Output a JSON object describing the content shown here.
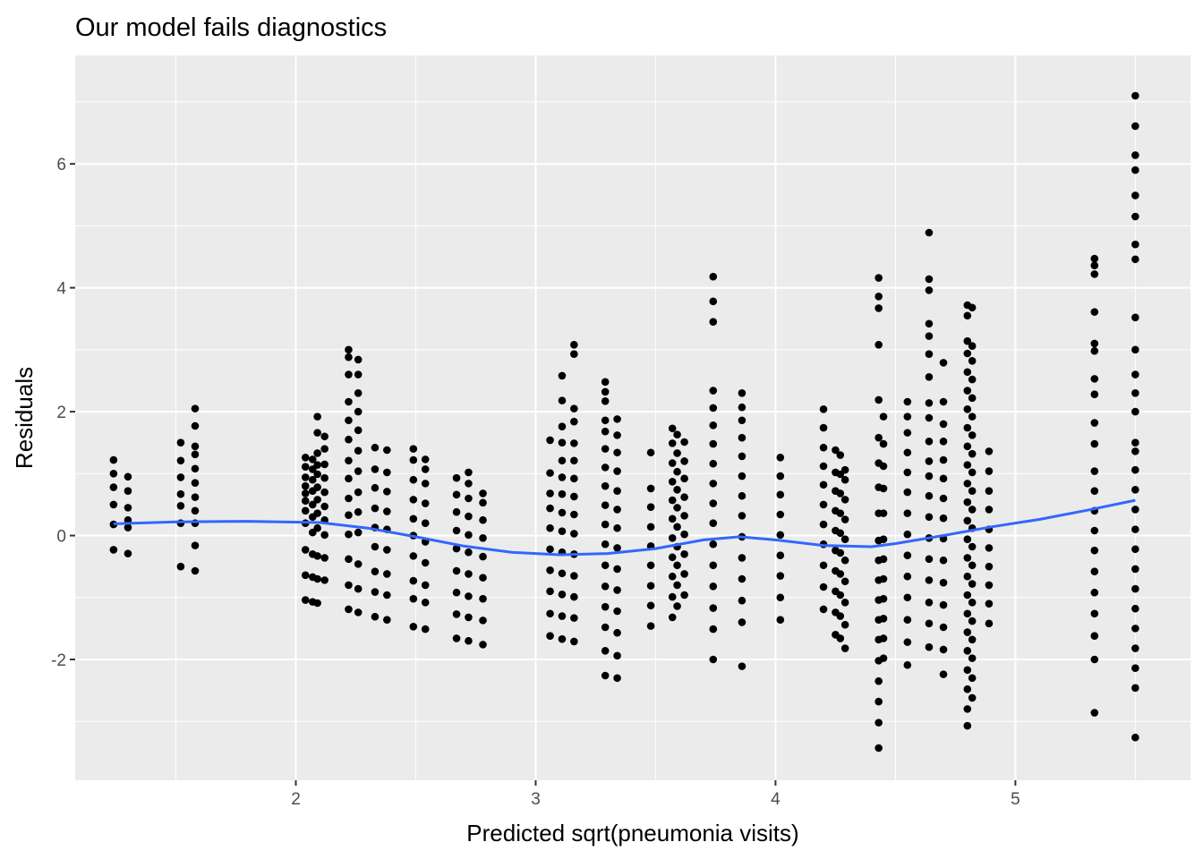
{
  "chart_data": {
    "type": "scatter",
    "title": "Our model fails diagnostics",
    "xlabel": "Predicted sqrt(pneumonia visits)",
    "ylabel": "Residuals",
    "xlim": [
      1.08,
      5.73
    ],
    "ylim": [
      -3.95,
      7.75
    ],
    "xticks": [
      2,
      3,
      4,
      5
    ],
    "yticks": [
      -2,
      0,
      2,
      4,
      6
    ],
    "grid": true,
    "panel_background": "#ebebeb",
    "point_color": "#000000",
    "smooth_color": "#3366ff",
    "columns": [
      {
        "x": 1.24,
        "y": [
          -0.23,
          0.18,
          0.5,
          0.78,
          1.0,
          1.22
        ]
      },
      {
        "x": 1.3,
        "y": [
          -0.29,
          0.13,
          0.25,
          0.45,
          0.72,
          0.95
        ]
      },
      {
        "x": 1.52,
        "y": [
          -0.5,
          0.2,
          0.48,
          0.67,
          0.94,
          1.21,
          1.5
        ]
      },
      {
        "x": 1.58,
        "y": [
          -0.57,
          -0.16,
          0.2,
          0.4,
          0.62,
          0.85,
          1.08,
          1.31,
          1.44,
          1.77,
          2.05
        ]
      },
      {
        "x": 2.04,
        "y": [
          -1.04,
          -0.64,
          -0.23,
          0.2,
          0.4,
          0.56,
          0.68,
          0.8,
          0.94,
          1.11,
          1.26
        ]
      },
      {
        "x": 2.07,
        "y": [
          -1.07,
          -0.67,
          -0.3,
          0.05,
          0.3,
          0.5,
          0.72,
          0.9,
          1.07,
          1.23
        ]
      },
      {
        "x": 2.09,
        "y": [
          -1.09,
          -0.7,
          -0.33,
          0.12,
          0.36,
          0.58,
          0.78,
          0.99,
          1.14,
          1.33,
          1.66,
          1.92
        ]
      },
      {
        "x": 2.12,
        "y": [
          -0.72,
          -0.36,
          0.01,
          0.25,
          0.47,
          0.7,
          0.93,
          1.15,
          1.4,
          1.6
        ]
      },
      {
        "x": 2.22,
        "y": [
          -1.19,
          -0.8,
          -0.38,
          0.02,
          0.33,
          0.6,
          0.92,
          1.21,
          1.55,
          1.86,
          2.16,
          2.6,
          2.88,
          3.0
        ]
      },
      {
        "x": 2.26,
        "y": [
          -1.24,
          -0.86,
          -0.46,
          0.05,
          0.38,
          0.7,
          1.04,
          1.37,
          1.7,
          2.0,
          2.3,
          2.6,
          2.84
        ]
      },
      {
        "x": 2.33,
        "y": [
          -1.31,
          -0.91,
          -0.58,
          -0.18,
          0.13,
          0.44,
          0.77,
          1.07,
          1.42
        ]
      },
      {
        "x": 2.38,
        "y": [
          -1.36,
          -0.96,
          -0.62,
          -0.23,
          0.1,
          0.39,
          0.71,
          1.02,
          1.38
        ]
      },
      {
        "x": 2.49,
        "y": [
          -1.47,
          -1.02,
          -0.73,
          -0.33,
          0.0,
          0.27,
          0.58,
          0.9,
          1.22,
          1.4
        ]
      },
      {
        "x": 2.54,
        "y": [
          -1.51,
          -1.08,
          -0.8,
          -0.44,
          -0.1,
          0.2,
          0.52,
          0.84,
          1.07,
          1.23
        ]
      },
      {
        "x": 2.67,
        "y": [
          -1.66,
          -1.27,
          -0.92,
          -0.57,
          -0.21,
          0.08,
          0.38,
          0.66,
          0.93
        ]
      },
      {
        "x": 2.72,
        "y": [
          -1.7,
          -1.32,
          -0.98,
          -0.62,
          -0.27,
          0.01,
          0.31,
          0.6,
          0.84,
          1.02
        ]
      },
      {
        "x": 2.78,
        "y": [
          -1.76,
          -1.37,
          -1.02,
          -0.68,
          -0.34,
          -0.04,
          0.25,
          0.53,
          0.68
        ]
      },
      {
        "x": 3.06,
        "y": [
          -1.62,
          -1.26,
          -0.9,
          -0.56,
          -0.22,
          0.12,
          0.44,
          0.68,
          1.01,
          1.54
        ]
      },
      {
        "x": 3.11,
        "y": [
          -1.67,
          -1.3,
          -0.95,
          -0.61,
          -0.27,
          0.07,
          0.37,
          0.67,
          0.94,
          1.21,
          1.5,
          1.76,
          2.18,
          2.58
        ]
      },
      {
        "x": 3.16,
        "y": [
          -1.71,
          -1.33,
          -0.99,
          -0.65,
          -0.3,
          0.03,
          0.34,
          0.63,
          0.92,
          1.21,
          1.49,
          1.84,
          2.05,
          2.93,
          3.08
        ]
      },
      {
        "x": 3.29,
        "y": [
          -2.26,
          -1.86,
          -1.48,
          -1.15,
          -0.82,
          -0.48,
          -0.14,
          0.18,
          0.49,
          0.8,
          1.1,
          1.4,
          1.68,
          1.86,
          2.17,
          2.32,
          2.48
        ]
      },
      {
        "x": 3.34,
        "y": [
          -2.3,
          -1.94,
          -1.57,
          -1.22,
          -0.88,
          -0.54,
          -0.2,
          0.12,
          0.42,
          0.72,
          1.04,
          1.34,
          1.62,
          1.88
        ]
      },
      {
        "x": 3.48,
        "y": [
          -1.46,
          -1.13,
          -0.81,
          -0.48,
          -0.17,
          0.14,
          0.46,
          0.76,
          1.34
        ]
      },
      {
        "x": 3.57,
        "y": [
          -1.32,
          -0.99,
          -0.66,
          -0.35,
          -0.04,
          0.27,
          0.57,
          0.87,
          1.17,
          1.49,
          1.73
        ]
      },
      {
        "x": 3.59,
        "y": [
          -1.14,
          -0.8,
          -0.48,
          -0.18,
          0.14,
          0.45,
          0.74,
          1.03,
          1.33,
          1.63
        ]
      },
      {
        "x": 3.62,
        "y": [
          -0.96,
          -0.62,
          -0.3,
          0.02,
          0.32,
          0.62,
          0.92,
          1.2,
          1.51
        ]
      },
      {
        "x": 3.74,
        "y": [
          -2.0,
          -1.51,
          -1.17,
          -0.82,
          -0.48,
          -0.14,
          0.2,
          0.52,
          0.84,
          1.16,
          1.48,
          1.78,
          2.06,
          2.34,
          3.45,
          3.78,
          4.18
        ]
      },
      {
        "x": 3.86,
        "y": [
          -2.11,
          -1.4,
          -1.05,
          -0.7,
          -0.36,
          -0.02,
          0.32,
          0.64,
          0.96,
          1.28,
          1.58,
          1.86,
          2.07,
          2.3
        ]
      },
      {
        "x": 4.02,
        "y": [
          -1.36,
          -1.0,
          -0.65,
          -0.32,
          0.01,
          0.34,
          0.66,
          0.96,
          1.26
        ]
      },
      {
        "x": 4.2,
        "y": [
          -1.19,
          -0.83,
          -0.48,
          -0.14,
          0.18,
          0.5,
          0.82,
          1.12,
          1.42,
          1.74,
          2.04
        ]
      },
      {
        "x": 4.25,
        "y": [
          -1.6,
          -1.24,
          -0.9,
          -0.57,
          -0.24,
          0.08,
          0.4,
          0.72,
          1.02,
          1.38
        ]
      },
      {
        "x": 4.27,
        "y": [
          -1.66,
          -1.3,
          -0.96,
          -0.62,
          -0.28,
          0.04,
          0.36,
          0.68,
          0.99,
          1.3
        ]
      },
      {
        "x": 4.29,
        "y": [
          -1.82,
          -1.44,
          -1.08,
          -0.74,
          -0.4,
          -0.06,
          0.26,
          0.58,
          0.9,
          1.06
        ]
      },
      {
        "x": 4.43,
        "y": [
          -3.43,
          -3.02,
          -2.68,
          -2.35,
          -2.02,
          -1.68,
          -1.36,
          -1.04,
          -0.72,
          -0.4,
          -0.08,
          0.36,
          0.78,
          1.17,
          1.58,
          2.19,
          3.08,
          3.67,
          3.86,
          4.16
        ]
      },
      {
        "x": 4.45,
        "y": [
          -1.98,
          -1.66,
          -1.34,
          -1.02,
          -0.7,
          -0.38,
          -0.06,
          0.36,
          0.76,
          1.12,
          1.48,
          1.92
        ]
      },
      {
        "x": 4.55,
        "y": [
          -2.09,
          -1.72,
          -1.36,
          -1.0,
          -0.66,
          -0.32,
          0.02,
          0.36,
          0.7,
          1.02,
          1.34,
          1.66,
          1.92,
          2.16
        ]
      },
      {
        "x": 4.64,
        "y": [
          -1.8,
          -1.42,
          -1.08,
          -0.72,
          -0.38,
          -0.04,
          0.3,
          0.64,
          0.96,
          1.2,
          1.52,
          1.9,
          2.14,
          2.56,
          2.93,
          3.22,
          3.42,
          3.96,
          4.14,
          4.89
        ]
      },
      {
        "x": 4.7,
        "y": [
          -2.24,
          -1.84,
          -1.48,
          -1.12,
          -0.76,
          -0.4,
          -0.05,
          0.28,
          0.6,
          0.92,
          1.22,
          1.52,
          1.8,
          2.16,
          2.79
        ]
      },
      {
        "x": 4.8,
        "y": [
          -3.07,
          -2.8,
          -2.48,
          -2.17,
          -1.86,
          -1.56,
          -1.26,
          -0.96,
          -0.66,
          -0.36,
          -0.06,
          0.24,
          0.54,
          0.84,
          1.14,
          1.44,
          1.74,
          2.04,
          2.34,
          2.64,
          2.94,
          3.14,
          3.55,
          3.72
        ]
      },
      {
        "x": 4.82,
        "y": [
          -2.62,
          -2.3,
          -1.98,
          -1.68,
          -1.38,
          -1.08,
          -0.78,
          -0.48,
          -0.18,
          0.12,
          0.42,
          0.72,
          1.02,
          1.32,
          1.62,
          1.92,
          2.22,
          2.52,
          2.82,
          3.06,
          3.68
        ]
      },
      {
        "x": 4.89,
        "y": [
          -1.42,
          -1.1,
          -0.8,
          -0.5,
          -0.2,
          0.1,
          0.42,
          0.72,
          1.04,
          1.36
        ]
      },
      {
        "x": 5.33,
        "y": [
          -2.86,
          -2.0,
          -1.62,
          -1.26,
          -0.92,
          -0.58,
          -0.24,
          0.08,
          0.4,
          0.72,
          1.04,
          1.48,
          1.82,
          2.28,
          2.53,
          2.98,
          3.1,
          3.61,
          4.22,
          4.36,
          4.47
        ]
      },
      {
        "x": 5.5,
        "y": [
          -3.26,
          -2.46,
          -2.14,
          -1.82,
          -1.5,
          -1.18,
          -0.86,
          -0.54,
          -0.22,
          0.1,
          0.42,
          0.74,
          1.06,
          1.36,
          1.5,
          2.0,
          2.3,
          2.6,
          3.0,
          3.52,
          4.46,
          4.7,
          5.15,
          5.49,
          5.9,
          6.14,
          6.61,
          7.1
        ]
      }
    ],
    "smooth": {
      "x": [
        1.24,
        1.5,
        1.8,
        2.1,
        2.3,
        2.5,
        2.7,
        2.9,
        3.1,
        3.3,
        3.5,
        3.7,
        3.85,
        4.0,
        4.2,
        4.4,
        4.5,
        4.7,
        4.9,
        5.1,
        5.3,
        5.5
      ],
      "y": [
        0.19,
        0.22,
        0.23,
        0.21,
        0.12,
        -0.02,
        -0.17,
        -0.27,
        -0.31,
        -0.29,
        -0.21,
        -0.07,
        -0.02,
        -0.07,
        -0.16,
        -0.18,
        -0.13,
        0.0,
        0.14,
        0.26,
        0.41,
        0.57
      ]
    }
  }
}
